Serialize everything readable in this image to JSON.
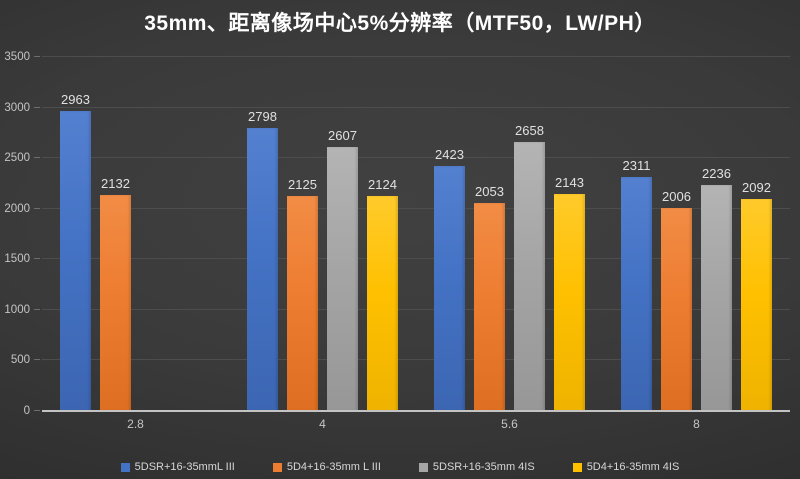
{
  "chart_data": {
    "type": "bar",
    "title": "35mm、距离像场中心5%分辨率（MTF50，LW/PH）",
    "categories": [
      "2.8",
      "4",
      "5.6",
      "8"
    ],
    "series": [
      {
        "name": "5DSR+16-35mmL III",
        "color": "#4472C4",
        "color_light": "#5480d0",
        "color_dark": "#3c66b2",
        "values": [
          2963,
          2798,
          2423,
          2311
        ]
      },
      {
        "name": "5D4+16-35mm L III",
        "color": "#ED7D31",
        "color_light": "#f28c45",
        "color_dark": "#de6f22",
        "values": [
          2132,
          2125,
          2053,
          2006
        ]
      },
      {
        "name": "5DSR+16-35mm 4IS",
        "color": "#A5A5A5",
        "color_light": "#b4b4b4",
        "color_dark": "#979797",
        "values": [
          null,
          2607,
          2658,
          2236
        ]
      },
      {
        "name": "5D4+16-35mm 4IS",
        "color": "#FFC000",
        "color_light": "#ffcb2b",
        "color_dark": "#efb300",
        "values": [
          null,
          2124,
          2143,
          2092
        ]
      }
    ],
    "xlabel": "",
    "ylabel": "",
    "ylim": [
      0,
      3500
    ],
    "y_ticks": [
      0,
      500,
      1000,
      1500,
      2000,
      2500,
      3000,
      3500
    ],
    "grid": true,
    "legend_position": "bottom",
    "colors": {
      "background_center": "#414141",
      "background_edge": "#232323",
      "title_text": "#ffffff",
      "value_label_text": "#e0e0e0",
      "axis_label_text": "#c4c4c4",
      "gridline": "#4d4d4d",
      "axis_line": "#c3c3c3",
      "legend_text": "#d6d6d6"
    }
  }
}
